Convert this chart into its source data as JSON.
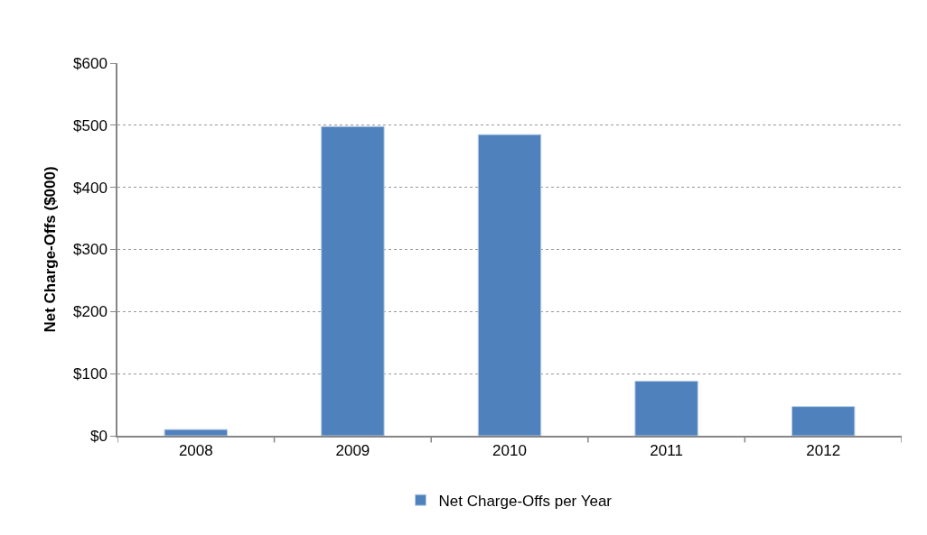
{
  "chart_data": {
    "type": "bar",
    "ylabel": "Net Charge-Offs ($000)",
    "categories": [
      "2008",
      "2009",
      "2010",
      "2011",
      "2012"
    ],
    "series": [
      {
        "name": "Net Charge-Offs per Year",
        "color": "#4f81bd",
        "values": [
          10,
          498,
          485,
          88,
          47
        ]
      }
    ],
    "ylim": [
      0,
      600
    ],
    "yticks": [
      {
        "value": 0,
        "label": "$0"
      },
      {
        "value": 100,
        "label": "$100"
      },
      {
        "value": 200,
        "label": "$200"
      },
      {
        "value": 300,
        "label": "$300"
      },
      {
        "value": 400,
        "label": "$400"
      },
      {
        "value": 500,
        "label": "$500"
      },
      {
        "value": 600,
        "label": "$600"
      }
    ],
    "grid": "y",
    "legend": "bottom"
  }
}
